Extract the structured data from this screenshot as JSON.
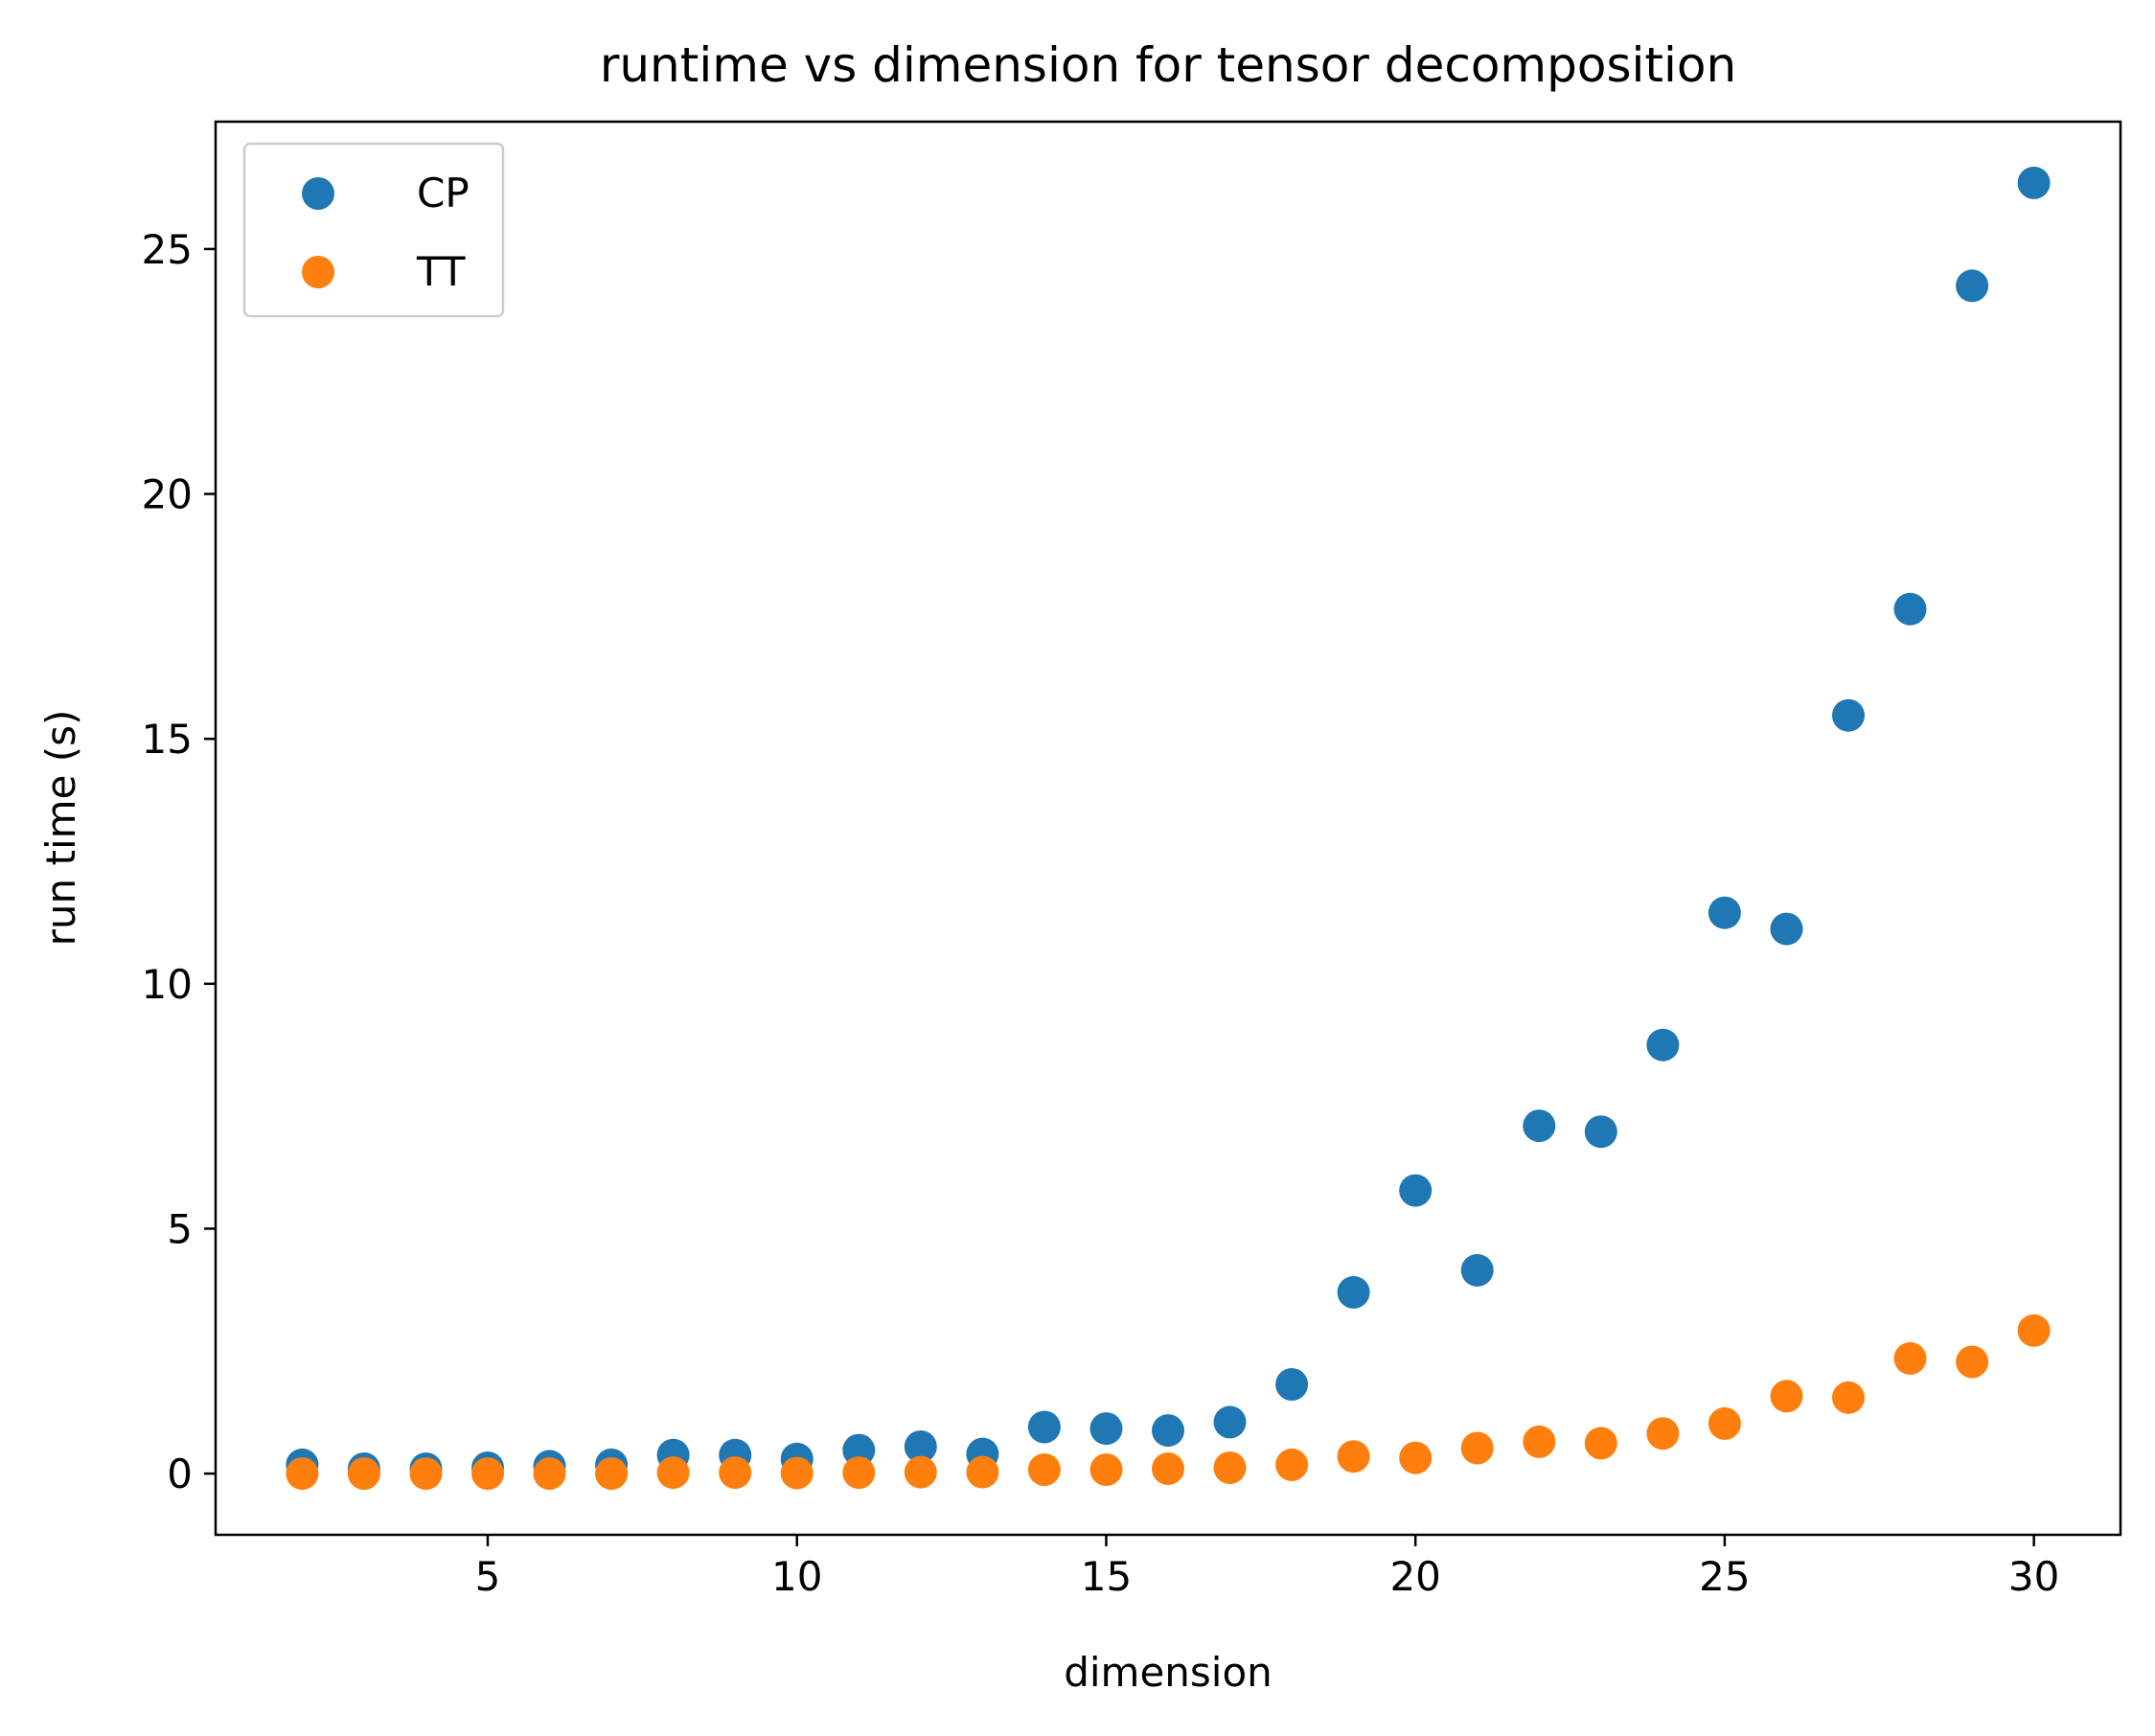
{
  "chart_data": {
    "type": "scatter",
    "title": "runtime vs dimension for tensor decomposition",
    "xlabel": "dimension",
    "ylabel": "run time (s)",
    "xlim": [
      0.6,
      31.4
    ],
    "ylim": [
      -1.25,
      27.6
    ],
    "xticks": [
      5,
      10,
      15,
      20,
      25,
      30
    ],
    "yticks": [
      0,
      5,
      10,
      15,
      20,
      25
    ],
    "grid": false,
    "legend_position": "top-left",
    "x": [
      2,
      3,
      4,
      5,
      6,
      7,
      8,
      9,
      10,
      11,
      12,
      13,
      14,
      15,
      16,
      17,
      18,
      19,
      20,
      21,
      22,
      23,
      24,
      25,
      26,
      27,
      28,
      29,
      30
    ],
    "series": [
      {
        "name": "CP",
        "color": "#1f77b4",
        "values": [
          0.18,
          0.1,
          0.1,
          0.12,
          0.15,
          0.18,
          0.38,
          0.38,
          0.3,
          0.48,
          0.55,
          0.4,
          0.95,
          0.92,
          0.88,
          1.05,
          1.82,
          3.7,
          5.78,
          4.15,
          7.1,
          6.98,
          8.75,
          11.45,
          11.12,
          15.48,
          17.65,
          24.25,
          26.35
        ]
      },
      {
        "name": "TT",
        "color": "#ff7f0e",
        "values": [
          0.0,
          0.0,
          0.0,
          0.0,
          0.0,
          0.0,
          0.02,
          0.02,
          0.01,
          0.02,
          0.03,
          0.03,
          0.08,
          0.08,
          0.1,
          0.12,
          0.18,
          0.35,
          0.32,
          0.52,
          0.65,
          0.62,
          0.82,
          1.02,
          1.58,
          1.55,
          2.35,
          2.28,
          2.92
        ]
      }
    ]
  }
}
